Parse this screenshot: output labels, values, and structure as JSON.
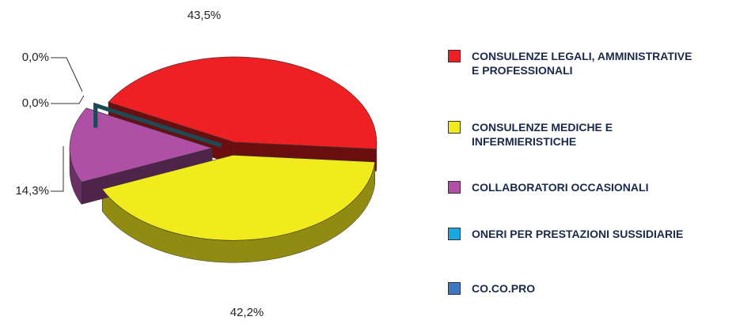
{
  "chart_data": {
    "type": "pie",
    "categories": [
      "CONSULENZE LEGALI, AMMINISTRATIVE E PROFESSIONALI",
      "CONSULENZE MEDICHE E INFERMIERISTICHE",
      "COLLABORATORI OCCASIONALI",
      "ONERI PER PRESTAZIONI SUSSIDIARIE",
      "CO.CO.PRO"
    ],
    "values": [
      43.5,
      42.2,
      14.3,
      0.0,
      0.0
    ],
    "value_labels": [
      "43,5%",
      "42,2%",
      "14,3%",
      "0,0%",
      "0,0%"
    ],
    "colors": [
      "#ee2024",
      "#f1ea1d",
      "#b04fa6",
      "#1aa8e0",
      "#3b78c0"
    ],
    "legend": "right"
  }
}
